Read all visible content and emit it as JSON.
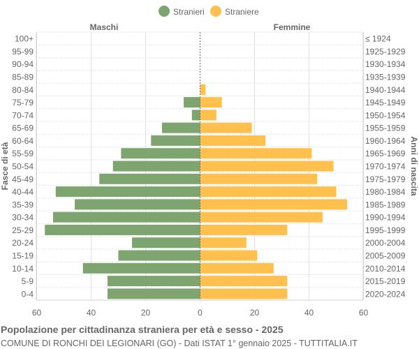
{
  "chart_data": {
    "type": "bar",
    "orientation": "horizontal-pyramid",
    "title": "Popolazione per cittadinanza straniera per età e sesso - 2025",
    "subtitle": "COMUNE DI RONCHI DEI LEGIONARI (GO) - Dati ISTAT 1° gennaio 2025 - TUTTITALIA.IT",
    "left_header": "Maschi",
    "right_header": "Femmine",
    "ylabel_left": "Fasce di età",
    "ylabel_right": "Anni di nascita",
    "categories": [
      "100+",
      "95-99",
      "90-94",
      "85-89",
      "80-84",
      "75-79",
      "70-74",
      "65-69",
      "60-64",
      "55-59",
      "50-54",
      "45-49",
      "40-44",
      "35-39",
      "30-34",
      "25-29",
      "20-24",
      "15-19",
      "10-14",
      "5-9",
      "0-4"
    ],
    "birth_years": [
      "≤ 1924",
      "1925-1929",
      "1930-1934",
      "1935-1939",
      "1940-1944",
      "1945-1949",
      "1950-1954",
      "1955-1959",
      "1960-1964",
      "1965-1969",
      "1970-1974",
      "1975-1979",
      "1980-1984",
      "1985-1989",
      "1990-1994",
      "1995-1999",
      "2000-2004",
      "2005-2009",
      "2010-2014",
      "2015-2019",
      "2020-2024"
    ],
    "series": [
      {
        "name": "Stranieri",
        "color": "#7ea46f",
        "side": "left",
        "values": [
          0,
          0,
          0,
          0,
          0,
          6,
          3,
          14,
          18,
          29,
          32,
          37,
          53,
          46,
          54,
          57,
          25,
          30,
          43,
          34,
          34
        ]
      },
      {
        "name": "Straniere",
        "color": "#ffc04d",
        "side": "right",
        "values": [
          0,
          0,
          0,
          0,
          2,
          8,
          6,
          19,
          24,
          41,
          49,
          43,
          50,
          54,
          45,
          32,
          17,
          21,
          27,
          32,
          32
        ]
      }
    ],
    "xlim": [
      -60,
      60
    ],
    "xticks": [
      "60",
      "40",
      "20",
      "0",
      "20",
      "40",
      "60"
    ],
    "grid": true,
    "legend_position": "top"
  }
}
